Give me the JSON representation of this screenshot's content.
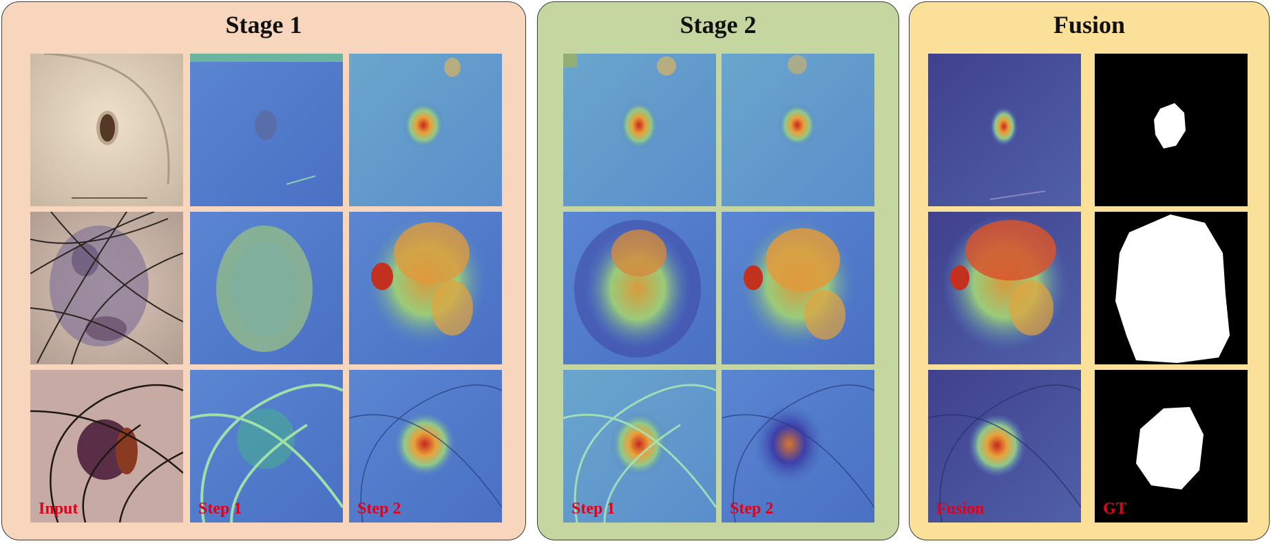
{
  "panels": {
    "stage1": {
      "title": "Stage 1",
      "color": "#f8d6bd"
    },
    "stage2": {
      "title": "Stage 2",
      "color": "#c5d6a1"
    },
    "fusion": {
      "title": "Fusion",
      "color": "#fbe09a"
    }
  },
  "labels": {
    "input": "Input",
    "stage1_step1": "Step 1",
    "stage1_step2": "Step 2",
    "stage2_step1": "Step 1",
    "stage2_step2": "Step 2",
    "fusion": "Fusion",
    "gt": "GT"
  },
  "colors": {
    "label_red": "#e3001b",
    "heat_base": "#4a78c8",
    "mask_bg": "#000000",
    "mask_fg": "#ffffff"
  }
}
